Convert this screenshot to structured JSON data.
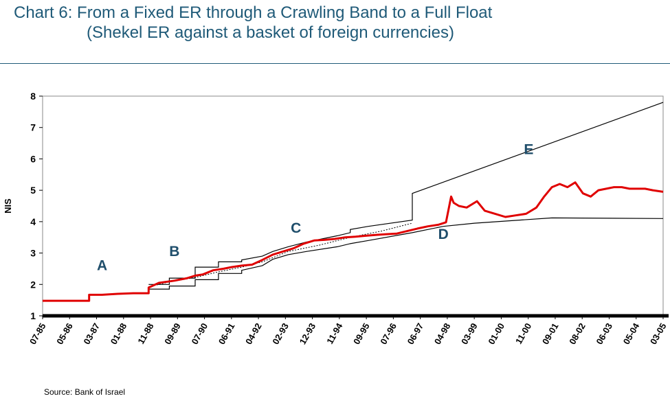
{
  "title_line1": "Chart 6: From a Fixed ER through a Crawling Band to a Full Float",
  "title_line2": "(Shekel ER against a basket of foreign currencies)",
  "source": "Source: Bank of Israel",
  "chart_data": {
    "type": "line",
    "ylabel": "NIS",
    "xlabel": "",
    "ylim": [
      1,
      8
    ],
    "yticks": [
      1,
      2,
      3,
      4,
      5,
      6,
      7,
      8
    ],
    "xlim": [
      "1985-07",
      "2005-07"
    ],
    "xtick_labels": [
      "07-85",
      "05-86",
      "03-87",
      "01-88",
      "11-88",
      "09-89",
      "07-90",
      "06-91",
      "04-92",
      "02-93",
      "12-93",
      "11-94",
      "09-95",
      "07-96",
      "06-97",
      "04-98",
      "03-99",
      "01-00",
      "11-00",
      "09-01",
      "08-02",
      "06-03",
      "05-04",
      "03-05"
    ],
    "grid": false,
    "colors": {
      "rate": "#e00000",
      "band": "#000000",
      "midpoint": "#000000"
    },
    "annotations": [
      {
        "text": "A",
        "x": "1987-06",
        "y": 2.45
      },
      {
        "text": "B",
        "x": "1989-10",
        "y": 2.9
      },
      {
        "text": "C",
        "x": "1993-09",
        "y": 3.65
      },
      {
        "text": "D",
        "x": "1998-06",
        "y": 3.45
      },
      {
        "text": "E",
        "x": "2001-03",
        "y": 6.15
      }
    ],
    "series": [
      {
        "role": "exchange-rate",
        "x": [
          "1985-07",
          "1986-06",
          "1987-01",
          "1987-01",
          "1987-06",
          "1987-12",
          "1988-06",
          "1988-12",
          "1988-12",
          "1989-04",
          "1989-10",
          "1990-03",
          "1990-06",
          "1990-09",
          "1991-01",
          "1991-05",
          "1991-08",
          "1991-12",
          "1992-04",
          "1992-08",
          "1992-12",
          "1993-04",
          "1993-08",
          "1993-12",
          "1994-04",
          "1994-08",
          "1994-12",
          "1995-04",
          "1995-08",
          "1995-12",
          "1996-04",
          "1996-08",
          "1996-12",
          "1997-04",
          "1997-08",
          "1997-12",
          "1998-04",
          "1998-07",
          "1998-09",
          "1998-10",
          "1998-12",
          "1999-03",
          "1999-07",
          "1999-10",
          "2000-02",
          "2000-06",
          "2000-10",
          "2001-02",
          "2001-06",
          "2001-09",
          "2001-12",
          "2002-03",
          "2002-06",
          "2002-09",
          "2002-12",
          "2003-03",
          "2003-06",
          "2003-09",
          "2003-12",
          "2004-03",
          "2004-06",
          "2004-09",
          "2004-12",
          "2005-03",
          "2005-07"
        ],
        "y": [
          1.48,
          1.48,
          1.48,
          1.67,
          1.67,
          1.7,
          1.72,
          1.72,
          1.9,
          2.05,
          2.12,
          2.2,
          2.28,
          2.32,
          2.45,
          2.5,
          2.55,
          2.6,
          2.63,
          2.78,
          2.95,
          3.05,
          3.15,
          3.3,
          3.4,
          3.42,
          3.45,
          3.5,
          3.52,
          3.55,
          3.58,
          3.6,
          3.62,
          3.7,
          3.78,
          3.85,
          3.9,
          3.98,
          4.8,
          4.6,
          4.5,
          4.45,
          4.65,
          4.35,
          4.25,
          4.15,
          4.2,
          4.25,
          4.45,
          4.8,
          5.1,
          5.2,
          5.1,
          5.25,
          4.9,
          4.8,
          5.0,
          5.05,
          5.1,
          5.1,
          5.05,
          5.05,
          5.05,
          5.0,
          4.95
        ]
      },
      {
        "role": "upper-band",
        "x": [
          "1988-12",
          "1989-08",
          "1989-08",
          "1990-06",
          "1990-06",
          "1991-03",
          "1991-03",
          "1991-12",
          "1991-12",
          "1992-08",
          "1992-12",
          "1993-06",
          "1994-01",
          "1995-01",
          "1995-06",
          "1995-06",
          "1996-01",
          "1997-06",
          "1997-06",
          "2005-07"
        ],
        "y": [
          2.0,
          2.0,
          2.2,
          2.2,
          2.55,
          2.55,
          2.72,
          2.72,
          2.78,
          2.9,
          3.05,
          3.2,
          3.35,
          3.55,
          3.65,
          3.75,
          3.85,
          4.05,
          4.9,
          7.8
        ]
      },
      {
        "role": "lower-band",
        "x": [
          "1988-12",
          "1989-08",
          "1989-08",
          "1990-06",
          "1990-06",
          "1991-03",
          "1991-03",
          "1991-12",
          "1991-12",
          "1992-08",
          "1992-12",
          "1993-06",
          "1994-01",
          "1995-01",
          "1995-06",
          "1996-01",
          "1997-06",
          "1998-06",
          "1999-06",
          "2001-12",
          "2005-07"
        ],
        "y": [
          1.85,
          1.85,
          1.95,
          1.95,
          2.15,
          2.15,
          2.35,
          2.35,
          2.45,
          2.6,
          2.8,
          2.95,
          3.05,
          3.2,
          3.3,
          3.4,
          3.65,
          3.85,
          3.95,
          4.12,
          4.1
        ]
      },
      {
        "role": "midpoint",
        "x": [
          "1988-12",
          "1989-08",
          "1990-06",
          "1991-03",
          "1991-12",
          "1992-08",
          "1993-06",
          "1994-06",
          "1995-06",
          "1996-06",
          "1997-06"
        ],
        "y": [
          1.92,
          2.08,
          2.22,
          2.4,
          2.55,
          2.72,
          3.05,
          3.25,
          3.5,
          3.7,
          3.95
        ]
      }
    ]
  }
}
